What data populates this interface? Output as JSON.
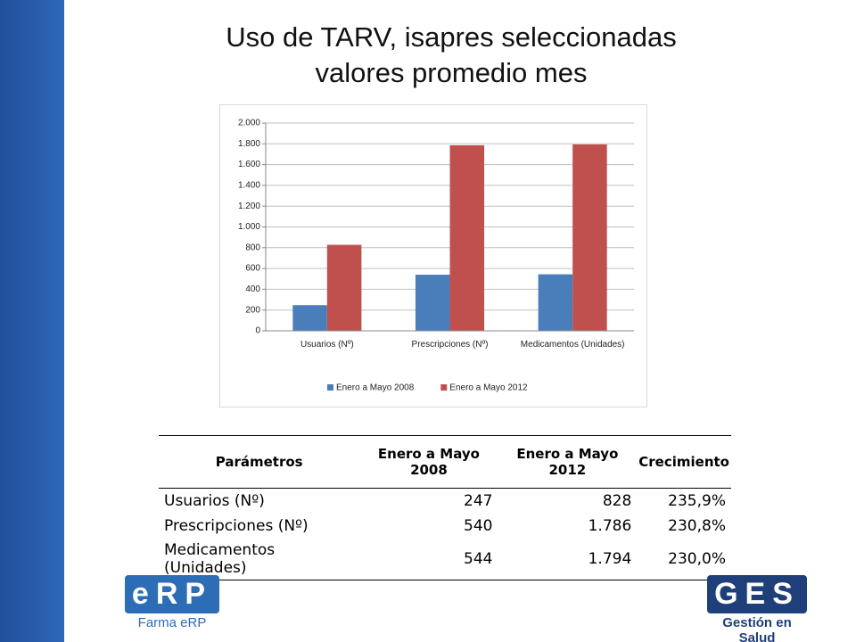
{
  "title": [
    "Uso de TARV, isapres seleccionadas",
    "valores promedio mes"
  ],
  "chart_data": {
    "type": "bar",
    "categories": [
      "Usuarios (Nº)",
      "Prescripciones (Nº)",
      "Medicamentos (Unidades)"
    ],
    "series": [
      {
        "name": "Enero a Mayo 2008",
        "color": "#4a7ebb",
        "values": [
          247,
          540,
          544
        ]
      },
      {
        "name": "Enero a Mayo 2012",
        "color": "#c0504d",
        "values": [
          828,
          1786,
          1794
        ]
      }
    ],
    "ylim": [
      0,
      2000
    ],
    "yticks": [
      0,
      200,
      400,
      600,
      800,
      {
        "value": 1000,
        "label": "1.000"
      },
      {
        "value": 1200,
        "label": "1.200"
      },
      {
        "value": 1400,
        "label": "1.400"
      },
      {
        "value": 1600,
        "label": "1.600"
      },
      {
        "value": 1800,
        "label": "1.800"
      },
      {
        "value": 2000,
        "label": "2.000"
      }
    ],
    "grid": true,
    "legend": "bottom"
  },
  "table": {
    "header": [
      "Parámetros",
      "Enero a Mayo 2008",
      "Enero a Mayo 2012",
      "Crecimiento"
    ],
    "rows": [
      [
        "Usuarios (Nº)",
        "247",
        "828",
        "235,9%"
      ],
      [
        "Prescripciones (Nº)",
        "540",
        "1.786",
        "230,8%"
      ],
      [
        "Medicamentos (Unidades)",
        "544",
        "1.794",
        "230,0%"
      ]
    ]
  },
  "logos": {
    "left": {
      "mark": "eRP",
      "caption": "Farma eRP"
    },
    "right": {
      "mark": "GES",
      "caption": "Gestión en Salud"
    }
  }
}
